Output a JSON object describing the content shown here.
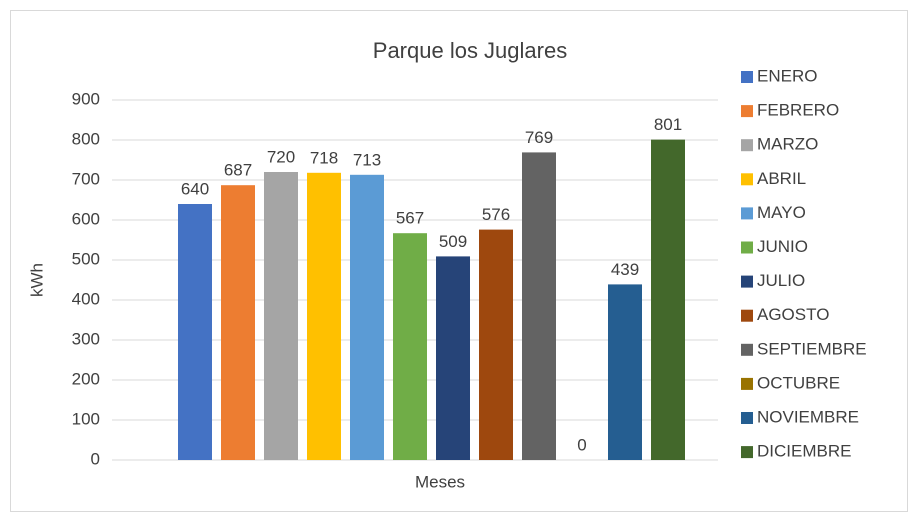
{
  "chart_data": {
    "type": "bar",
    "title": "Parque los Juglares",
    "x_label": "Meses",
    "y_label": "kWh",
    "series": [
      {
        "name": "ENERO",
        "color": "#4472c4",
        "values": [
          640
        ]
      },
      {
        "name": "FEBRERO",
        "color": "#ed7d31",
        "values": [
          687
        ]
      },
      {
        "name": "MARZO",
        "color": "#a5a5a5",
        "values": [
          720
        ]
      },
      {
        "name": "ABRIL",
        "color": "#ffc000",
        "values": [
          718
        ]
      },
      {
        "name": "MAYO",
        "color": "#5b9bd5",
        "values": [
          713
        ]
      },
      {
        "name": "JUNIO",
        "color": "#70ad47",
        "values": [
          567
        ]
      },
      {
        "name": "JULIO",
        "color": "#264478",
        "values": [
          509
        ]
      },
      {
        "name": "AGOSTO",
        "color": "#9e480e",
        "values": [
          576
        ]
      },
      {
        "name": "SEPTIEMBRE",
        "color": "#636363",
        "values": [
          769
        ]
      },
      {
        "name": "OCTUBRE",
        "color": "#997300",
        "values": [
          0
        ]
      },
      {
        "name": "NOVIEMBRE",
        "color": "#255e91",
        "values": [
          439
        ]
      },
      {
        "name": "DICIEMBRE",
        "color": "#43682b",
        "values": [
          801
        ]
      }
    ],
    "ylim": [
      0,
      900
    ],
    "yticks": [
      0,
      100,
      200,
      300,
      400,
      500,
      600,
      700,
      800,
      900
    ],
    "grid": true,
    "legend": "right"
  }
}
